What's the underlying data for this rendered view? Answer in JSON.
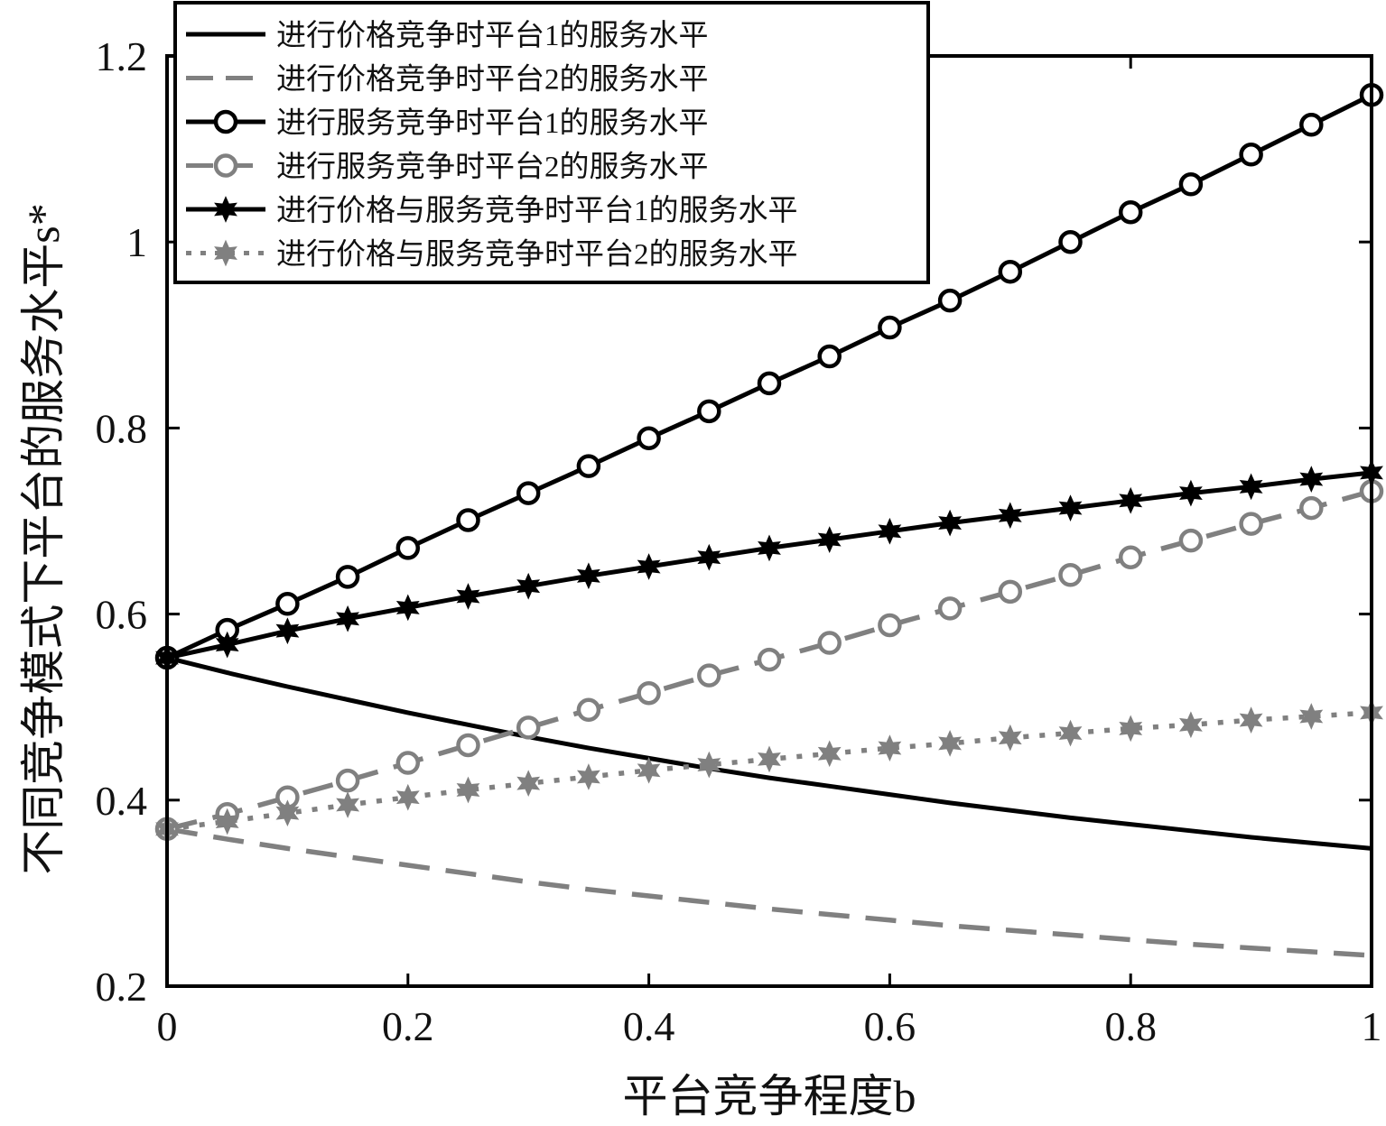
{
  "chart_data": {
    "type": "line",
    "xlabel": "平台竞争程度b",
    "ylabel": "不同竞争模式下平台的服务水平s*",
    "xlim": [
      0,
      1
    ],
    "ylim": [
      0.2,
      1.2
    ],
    "xticks": [
      0,
      0.2,
      0.4,
      0.6,
      0.8,
      1
    ],
    "xtick_labels": [
      "0",
      "0.2",
      "0.4",
      "0.6",
      "0.8",
      "1"
    ],
    "yticks": [
      0.2,
      0.4,
      0.6,
      0.8,
      1.0,
      1.2
    ],
    "ytick_labels": [
      "0.2",
      "0.4",
      "0.6",
      "0.8",
      "1",
      "1.2"
    ],
    "grid": false,
    "legend_position": "top-left",
    "x": [
      0,
      0.05,
      0.1,
      0.15,
      0.2,
      0.25,
      0.3,
      0.35,
      0.4,
      0.45,
      0.5,
      0.55,
      0.6,
      0.65,
      0.7,
      0.75,
      0.8,
      0.85,
      0.9,
      0.95,
      1.0
    ],
    "series": [
      {
        "name": "进行价格竞争时平台1的服务水平",
        "color": "#000000",
        "dash": "solid",
        "marker": "none",
        "values": [
          0.553,
          0.537,
          0.522,
          0.508,
          0.494,
          0.481,
          0.468,
          0.456,
          0.445,
          0.434,
          0.424,
          0.415,
          0.406,
          0.397,
          0.389,
          0.381,
          0.374,
          0.367,
          0.36,
          0.354,
          0.348
        ]
      },
      {
        "name": "进行价格竞争时平台2的服务水平",
        "color": "#808080",
        "dash": "dashed",
        "marker": "none",
        "values": [
          0.369,
          0.358,
          0.348,
          0.339,
          0.33,
          0.321,
          0.312,
          0.304,
          0.297,
          0.29,
          0.283,
          0.277,
          0.271,
          0.265,
          0.26,
          0.255,
          0.25,
          0.245,
          0.241,
          0.237,
          0.233
        ]
      },
      {
        "name": "进行服务竞争时平台1的服务水平",
        "color": "#000000",
        "dash": "solid",
        "marker": "circle",
        "values": [
          0.553,
          0.583,
          0.611,
          0.64,
          0.671,
          0.701,
          0.73,
          0.759,
          0.789,
          0.818,
          0.848,
          0.877,
          0.908,
          0.937,
          0.968,
          1.0,
          1.032,
          1.062,
          1.094,
          1.126,
          1.158
        ]
      },
      {
        "name": "进行服务竞争时平台2的服务水平",
        "color": "#808080",
        "dash": "dashed",
        "marker": "circle",
        "values": [
          0.369,
          0.385,
          0.403,
          0.421,
          0.44,
          0.459,
          0.478,
          0.497,
          0.515,
          0.534,
          0.551,
          0.569,
          0.588,
          0.606,
          0.624,
          0.642,
          0.661,
          0.679,
          0.697,
          0.714,
          0.732
        ]
      },
      {
        "name": "进行价格与服务竞争时平台1的服务水平",
        "color": "#000000",
        "dash": "solid",
        "marker": "star",
        "values": [
          0.553,
          0.567,
          0.582,
          0.595,
          0.607,
          0.619,
          0.63,
          0.641,
          0.651,
          0.661,
          0.671,
          0.68,
          0.689,
          0.698,
          0.706,
          0.714,
          0.722,
          0.73,
          0.737,
          0.745,
          0.752
        ]
      },
      {
        "name": "进行价格与服务竞争时平台2的服务水平",
        "color": "#808080",
        "dash": "dotted",
        "marker": "star",
        "values": [
          0.369,
          0.377,
          0.386,
          0.395,
          0.403,
          0.411,
          0.418,
          0.425,
          0.432,
          0.438,
          0.444,
          0.45,
          0.456,
          0.461,
          0.467,
          0.472,
          0.477,
          0.481,
          0.486,
          0.49,
          0.494
        ]
      }
    ]
  }
}
